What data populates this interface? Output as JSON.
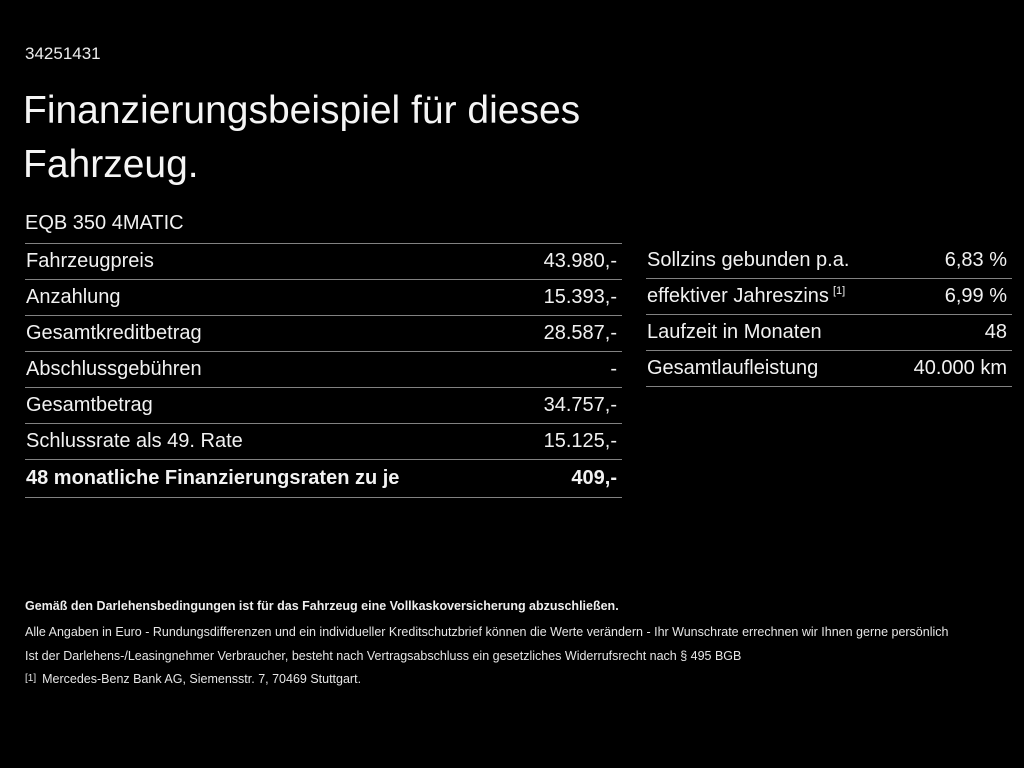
{
  "page": {
    "doc_id": "34251431",
    "title": "Finanzierungsbeispiel für dieses Fahrzeug.",
    "model": "EQB 350 4MATIC"
  },
  "left_table": {
    "rows": [
      {
        "label": "Fahrzeugpreis",
        "value": "43.980,-",
        "bold": false
      },
      {
        "label": "Anzahlung",
        "value": "15.393,-",
        "bold": false
      },
      {
        "label": "Gesamtkreditbetrag",
        "value": "28.587,-",
        "bold": false
      },
      {
        "label": "Abschlussgebühren",
        "value": "-",
        "bold": false
      },
      {
        "label": "Gesamtbetrag",
        "value": "34.757,-",
        "bold": false
      },
      {
        "label": "Schlussrate als 49. Rate",
        "value": "15.125,-",
        "bold": false
      },
      {
        "label": "48 monatliche Finanzierungsraten zu je",
        "value": "409,-",
        "bold": true
      }
    ]
  },
  "right_table": {
    "rows": [
      {
        "label": "Sollzins gebunden p.a.",
        "value": "6,83 %",
        "bold": false
      },
      {
        "label": "effektiver Jahreszins",
        "sup": "[1]",
        "value": "6,99 %",
        "bold": false
      },
      {
        "label": "Laufzeit in Monaten",
        "value": "48",
        "bold": false
      },
      {
        "label": "Gesamtlaufleistung",
        "value": "40.000 km",
        "bold": false
      }
    ]
  },
  "footer": {
    "line1": "Gemäß den Darlehensbedingungen ist für das Fahrzeug eine Vollkaskoversicherung abzuschließen.",
    "line2": "Alle Angaben in Euro - Rundungsdifferenzen und ein individueller Kreditschutzbrief können die Werte verändern - Ihr Wunschrate errechnen wir Ihnen gerne persönlich",
    "line3": "Ist der Darlehens-/Leasingnehmer Verbraucher, besteht nach Vertragsabschluss ein gesetzliches Widerrufsrecht nach § 495 BGB",
    "footnote_marker": "[1]",
    "footnote_text": "Mercedes-Benz Bank AG, Siemensstr. 7, 70469 Stuttgart."
  },
  "colors": {
    "background": "#000000",
    "text": "#f2f2f2",
    "divider": "#828282"
  }
}
